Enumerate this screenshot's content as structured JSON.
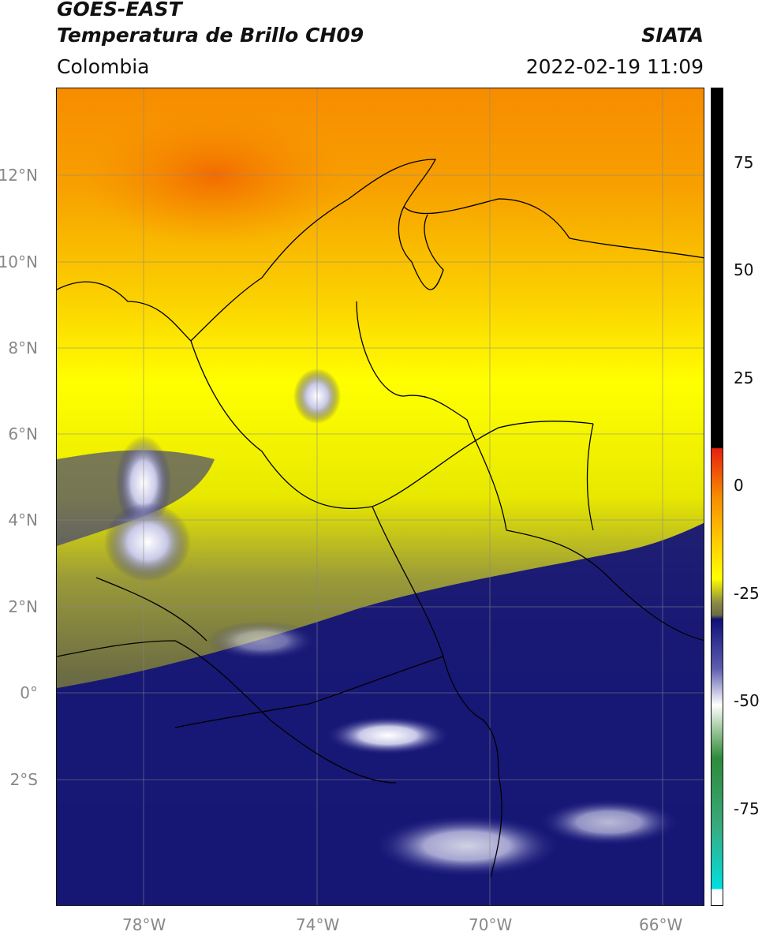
{
  "header": {
    "title_line1": "GOES-EAST",
    "title_line2": "Temperatura de Brillo CH09",
    "brand": "SIATA",
    "region": "Colombia",
    "datetime": "2022-02-19 11:09"
  },
  "map": {
    "lat_labels": [
      "12°N",
      "10°N",
      "8°N",
      "6°N",
      "4°N",
      "2°N",
      "0°",
      "2°S"
    ],
    "lon_labels": [
      "78°W",
      "74°W",
      "70°W",
      "66°W"
    ]
  },
  "colorbar": {
    "ticks": [
      "75",
      "50",
      "25",
      "0",
      "-25",
      "-50",
      "-75"
    ],
    "colors": {
      "black": "#000000",
      "red": "#e8200f",
      "orange": "#f7a400",
      "yellow": "#ffff00",
      "olive": "#6b6b45",
      "navy": "#10107a",
      "white": "#ffffff",
      "green": "#2e8b3a",
      "cyan": "#00e0e0"
    }
  }
}
